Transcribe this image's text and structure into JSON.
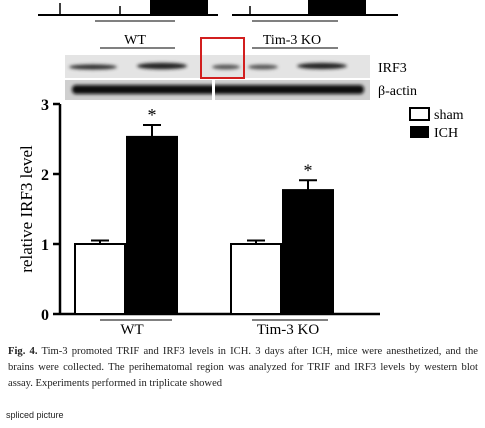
{
  "chart_data": {
    "type": "bar",
    "categories": [
      "WT",
      "Tim-3 KO"
    ],
    "series": [
      {
        "name": "sham",
        "values": [
          1.0,
          1.0
        ],
        "errors": [
          0.05,
          0.05
        ],
        "fill": "#ffffff"
      },
      {
        "name": "ICH",
        "values": [
          2.53,
          1.77
        ],
        "errors": [
          0.17,
          0.14
        ],
        "fill": "#000000"
      }
    ],
    "significance": [
      "*",
      "*"
    ],
    "ylabel": "relative IRF3 level",
    "ylim": [
      0,
      3
    ],
    "yticks": [
      "0",
      "1",
      "2",
      "3"
    ],
    "legend_position": "top-right",
    "grid": false
  },
  "blot": {
    "top_labels": [
      "WT",
      "Tim-3 KO"
    ],
    "bands": [
      "IRF3",
      "β-actin"
    ]
  },
  "caption": {
    "label": "Fig. 4.",
    "text": "Tim-3 promoted TRIF and IRF3 levels in ICH. 3 days after ICH, mice were anesthetized, and the brains were collected. The perihematomal region was analyzed for TRIF and IRF3 levels by western blot assay. Experiments performed in triplicate showed"
  },
  "footer": {
    "spliced_label": "spliced picture"
  }
}
